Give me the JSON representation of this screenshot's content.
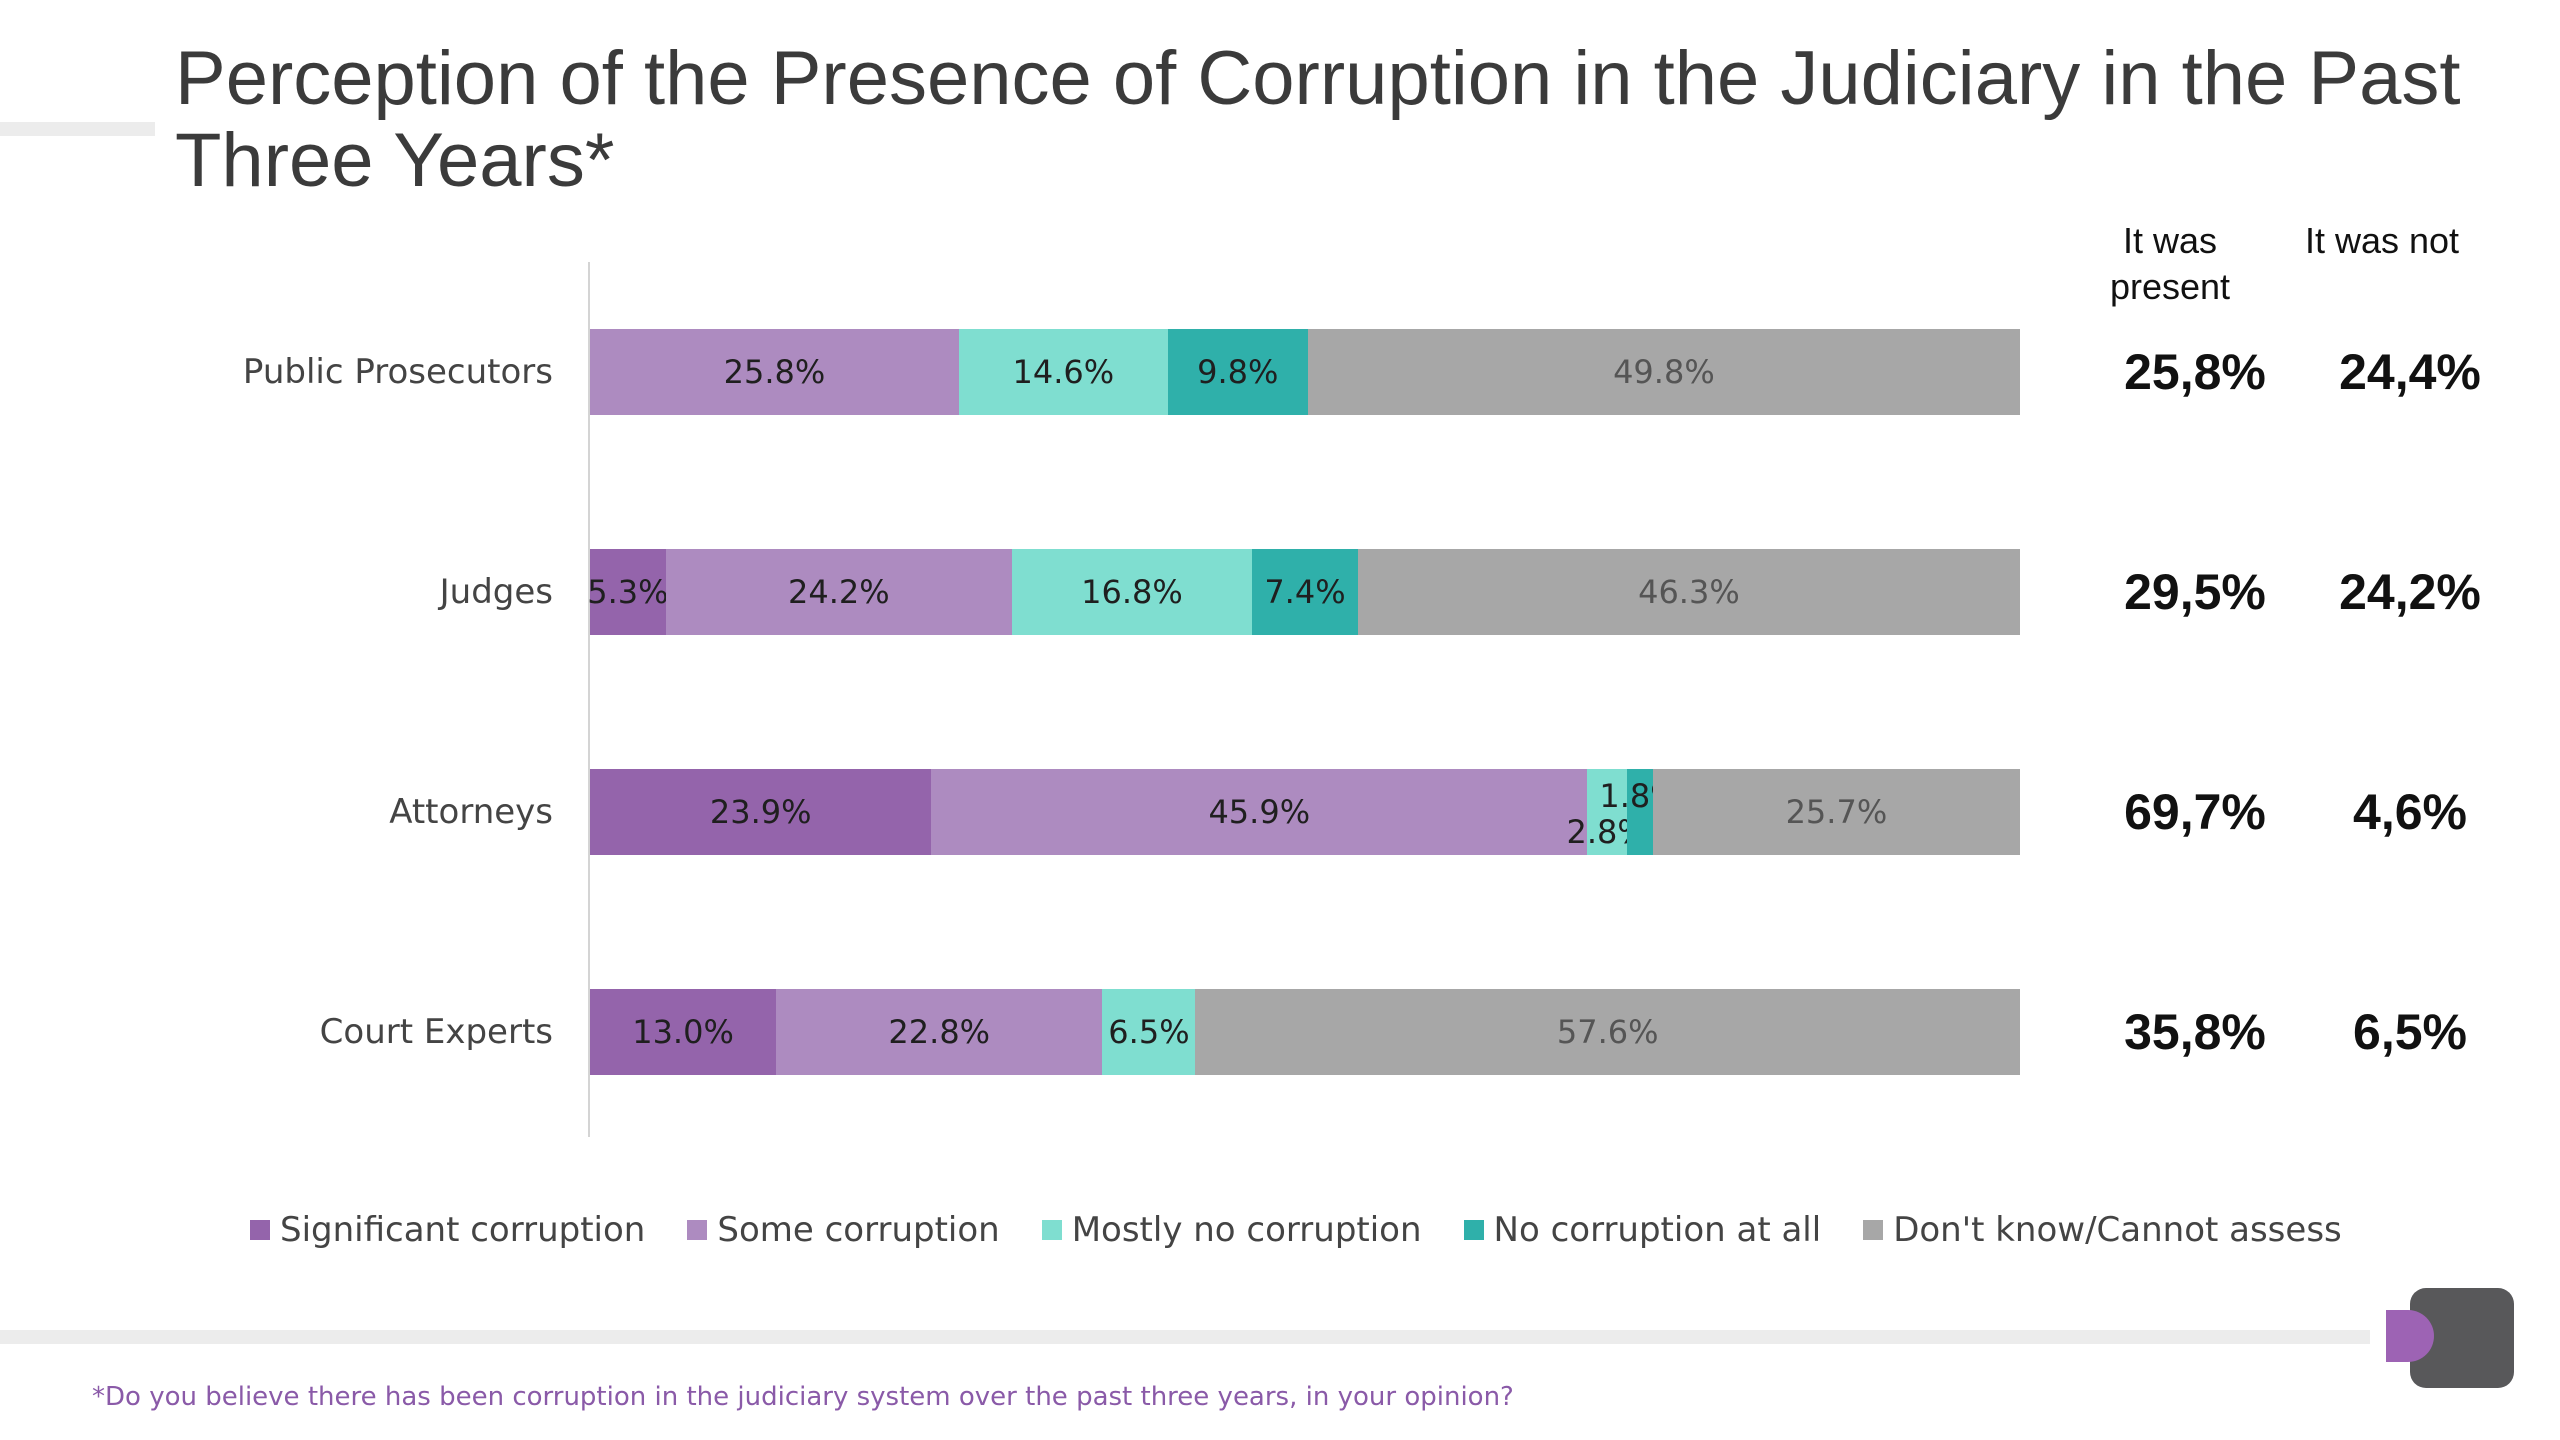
{
  "title": "Perception of the Presence of Corruption in the Judiciary in the Past Three Years*",
  "columns": {
    "present_header": "It was present",
    "not_header": "It was not"
  },
  "colors": {
    "significant": "#9464ab",
    "some": "#ad8bc0",
    "mostly_no": "#7fded0",
    "none": "#2fb0aa",
    "unknown": "#a7a7a7"
  },
  "chart_data": {
    "type": "bar",
    "orientation": "horizontal",
    "stacked": true,
    "percent_stacked": true,
    "categories": [
      "Public Prosecutors",
      "Judges",
      "Attorneys",
      "Court Experts"
    ],
    "series": [
      {
        "name": "Significant corruption",
        "values": [
          0,
          5.3,
          23.9,
          13.0
        ],
        "labels": [
          "",
          "5.3%",
          "23.9%",
          "13.0%"
        ]
      },
      {
        "name": "Some corruption",
        "values": [
          25.8,
          24.2,
          45.9,
          22.8
        ],
        "labels": [
          "25.8%",
          "24.2%",
          "45.9%",
          "22.8%"
        ]
      },
      {
        "name": "Mostly no corruption",
        "values": [
          14.6,
          16.8,
          2.8,
          6.5
        ],
        "labels": [
          "14.6%",
          "16.8%",
          "2.8%",
          "6.5%"
        ]
      },
      {
        "name": "No corruption at all",
        "values": [
          9.8,
          7.4,
          1.8,
          0
        ],
        "labels": [
          "9.8%",
          "7.4%",
          "1.8%",
          ""
        ]
      },
      {
        "name": "Don't know/Cannot assess",
        "values": [
          49.8,
          46.3,
          25.7,
          57.6
        ],
        "labels": [
          "49.8%",
          "46.3%",
          "25.7%",
          "57.6%"
        ]
      }
    ],
    "legend_position": "bottom",
    "grid": false
  },
  "summary": [
    {
      "present": "25,8%",
      "not": "24,4%"
    },
    {
      "present": "29,5%",
      "not": "24,2%"
    },
    {
      "present": "69,7%",
      "not": "4,6%"
    },
    {
      "present": "35,8%",
      "not": "6,5%"
    }
  ],
  "footnote": "*Do you believe there has been corruption in the judiciary system over the past three years, in your opinion?"
}
